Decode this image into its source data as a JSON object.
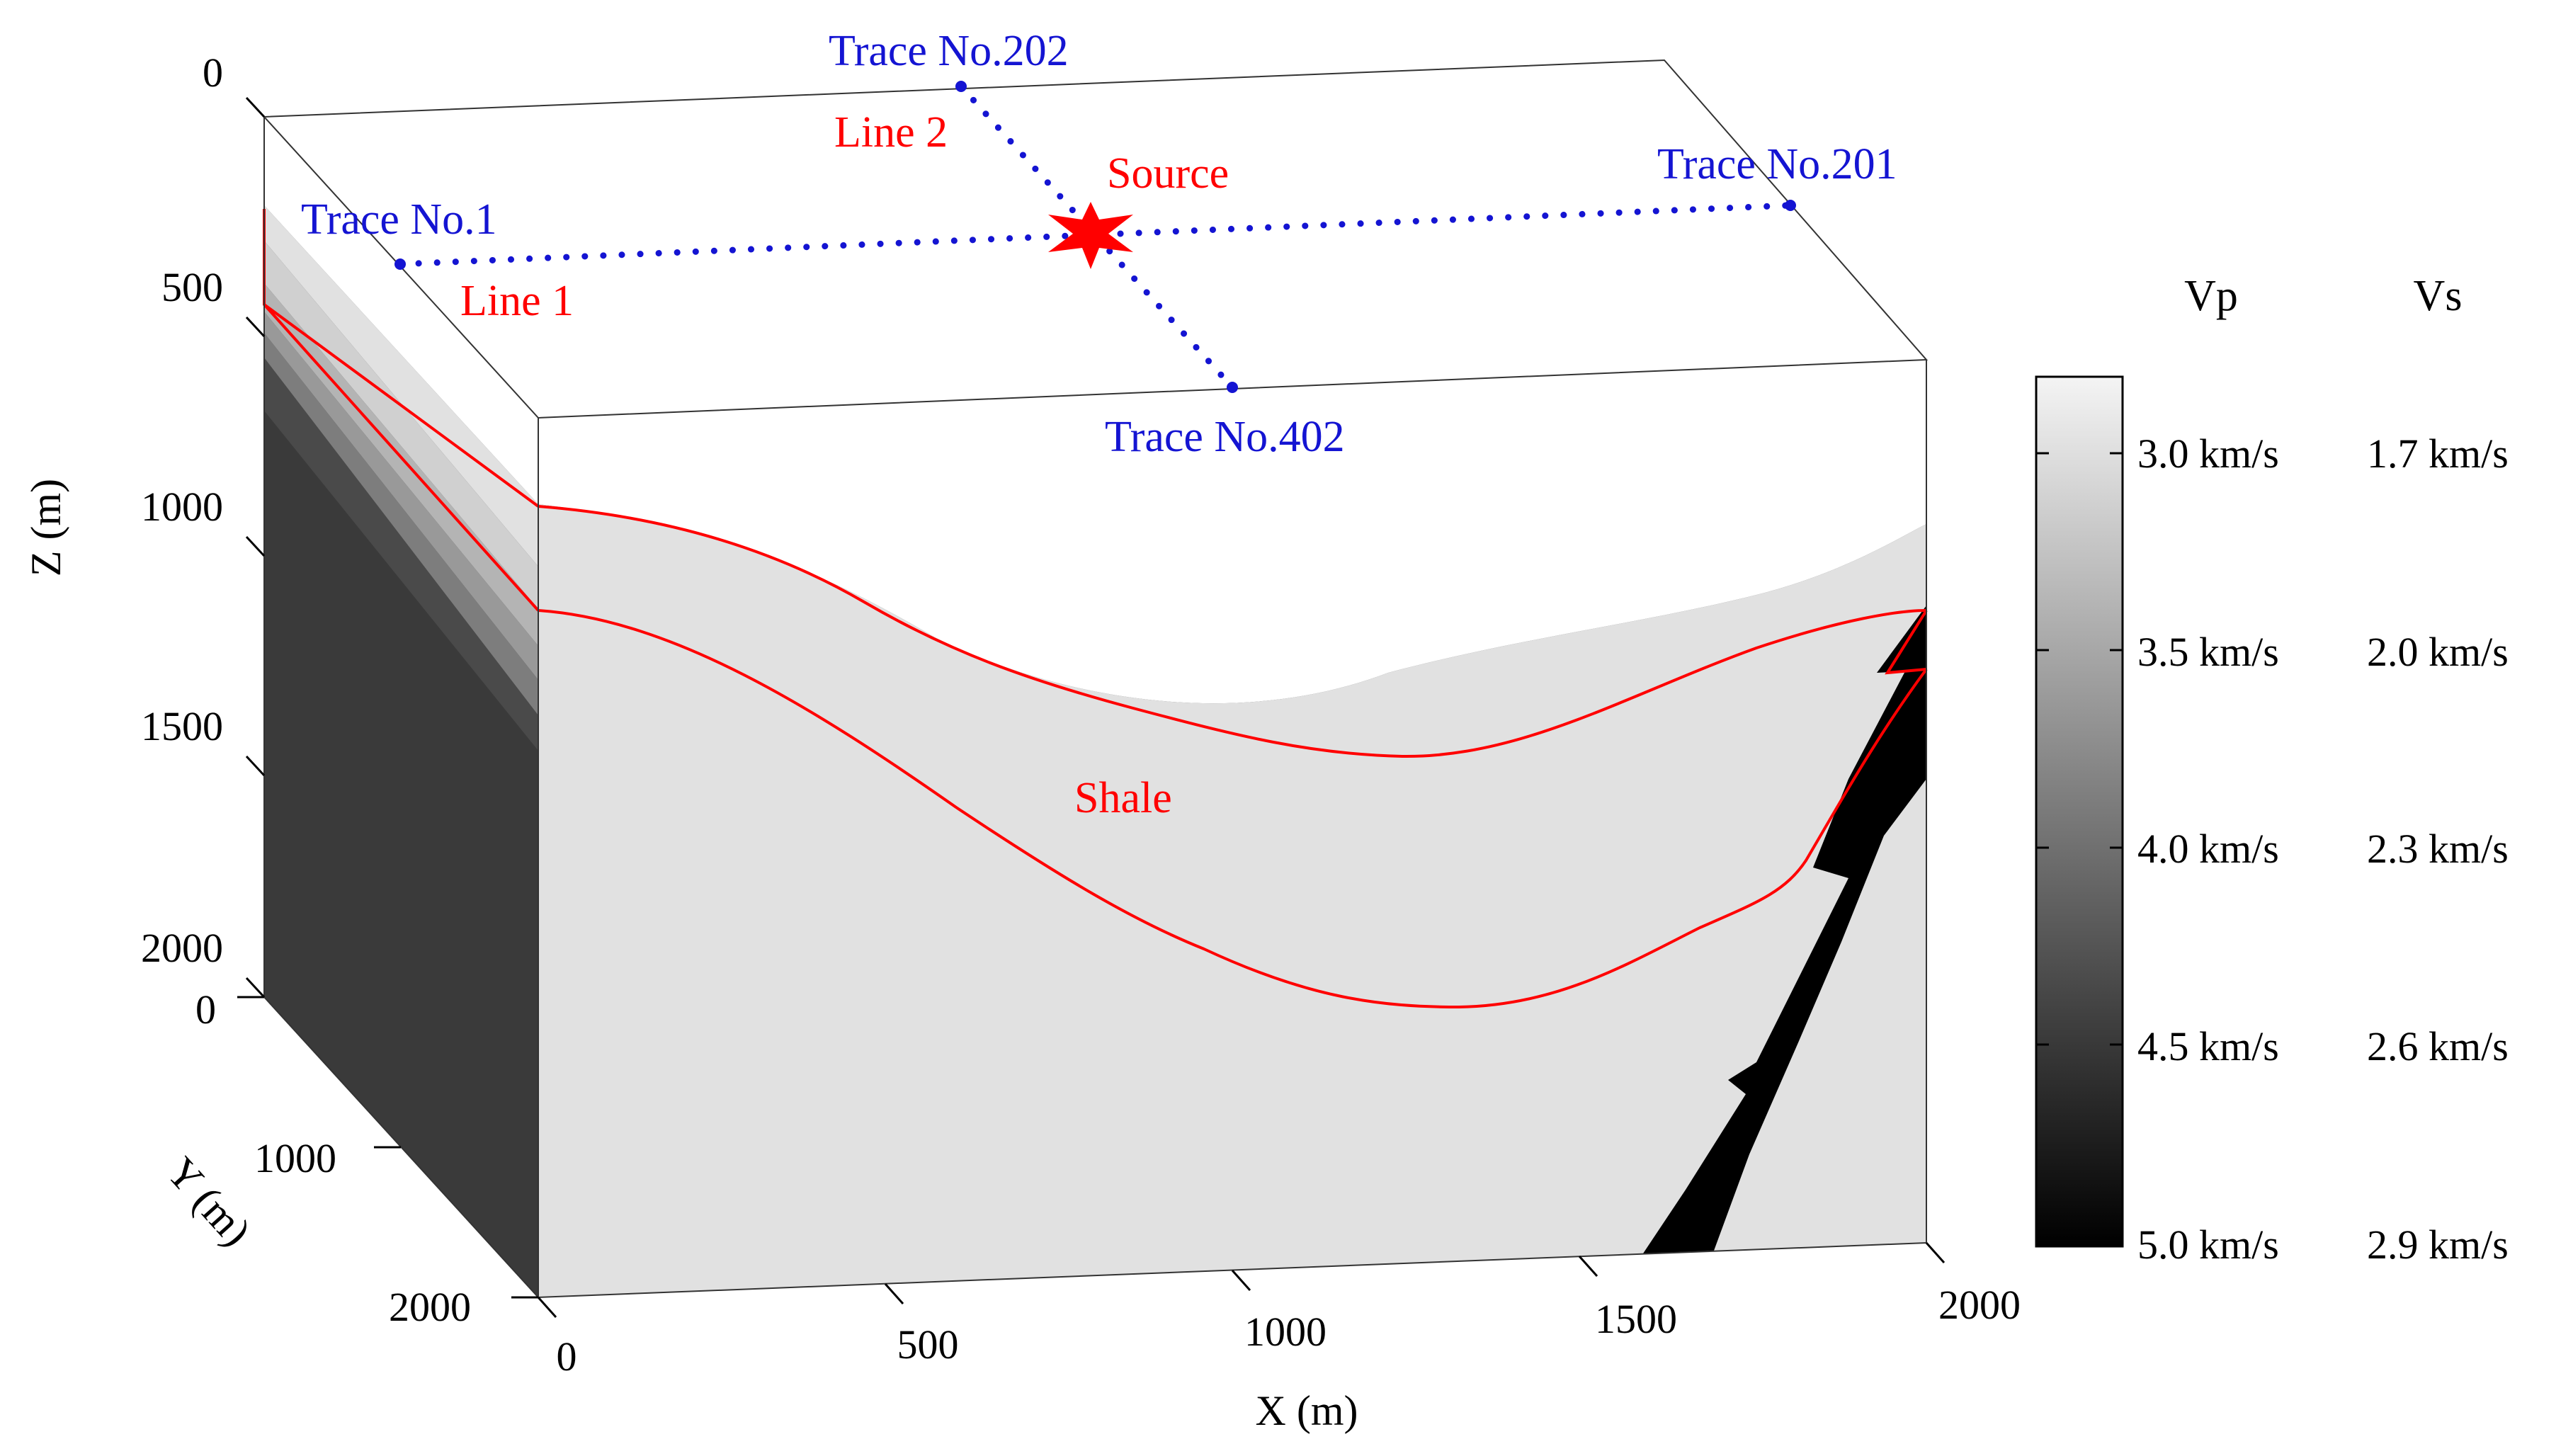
{
  "colors": {
    "trace": "#1414d2",
    "line_marker": "#ff0000",
    "layer1": "#e1e1e1",
    "layer2": "#d0d0d0",
    "layer3": "#b4b4b4",
    "layer4": "#999999",
    "layer5": "#7d7d7d",
    "layer6": "#4a4a4a",
    "deep": "#3a3a3a",
    "fault": "#000000"
  },
  "axes": {
    "z": {
      "label": "Z (m)",
      "ticks": [
        "0",
        "500",
        "1000",
        "1500",
        "2000"
      ]
    },
    "y": {
      "label": "Y (m)",
      "ticks": [
        "0",
        "1000",
        "2000"
      ]
    },
    "x": {
      "label": "X (m)",
      "ticks": [
        "0",
        "500",
        "1000",
        "1500",
        "2000"
      ]
    }
  },
  "annotations": {
    "trace_1": "Trace No.1",
    "trace_201": "Trace No.201",
    "trace_202": "Trace No.202",
    "trace_402": "Trace No.402",
    "line_1": "Line 1",
    "line_2": "Line 2",
    "source": "Source",
    "shale": "Shale"
  },
  "colorbar": {
    "vp_header": "Vp",
    "vs_header": "Vs",
    "vp_ticks": [
      "3.0 km/s",
      "3.5 km/s",
      "4.0 km/s",
      "4.5 km/s",
      "5.0 km/s"
    ],
    "vs_ticks": [
      "1.7 km/s",
      "2.0 km/s",
      "2.3 km/s",
      "2.6 km/s",
      "2.9 km/s"
    ]
  }
}
